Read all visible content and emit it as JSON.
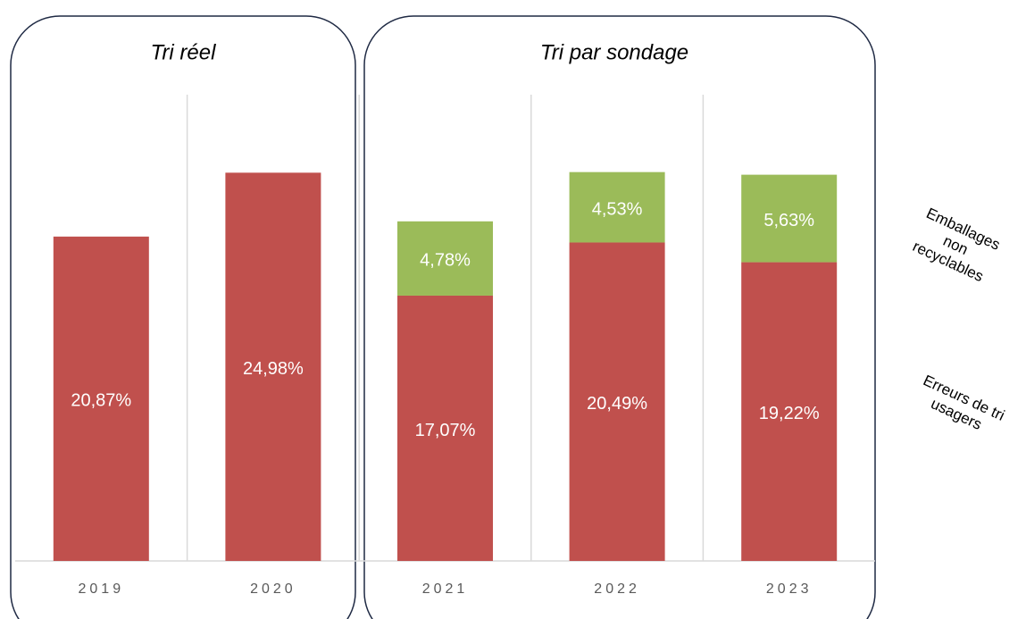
{
  "chart_data": {
    "type": "stacked-bar",
    "annotations": [
      "Tri réel",
      "Tri par sondage"
    ],
    "categories": [
      "2019",
      "2020",
      "2021",
      "2022",
      "2023"
    ],
    "series": [
      {
        "name": "Erreurs de tri usagers",
        "color": "#c0504d",
        "values": [
          20.87,
          24.98,
          17.07,
          20.49,
          19.22
        ],
        "value_labels": [
          "20,87%",
          "24,98%",
          "17,07%",
          "20,49%",
          "19,22%"
        ]
      },
      {
        "name": "Emballages non recyclables",
        "color": "#9bbb59",
        "values": [
          null,
          null,
          4.78,
          4.53,
          5.63
        ],
        "value_labels": [
          null,
          null,
          "4,78%",
          "4,53%",
          "5,63%"
        ]
      }
    ],
    "ylim": [
      0,
      30
    ]
  }
}
